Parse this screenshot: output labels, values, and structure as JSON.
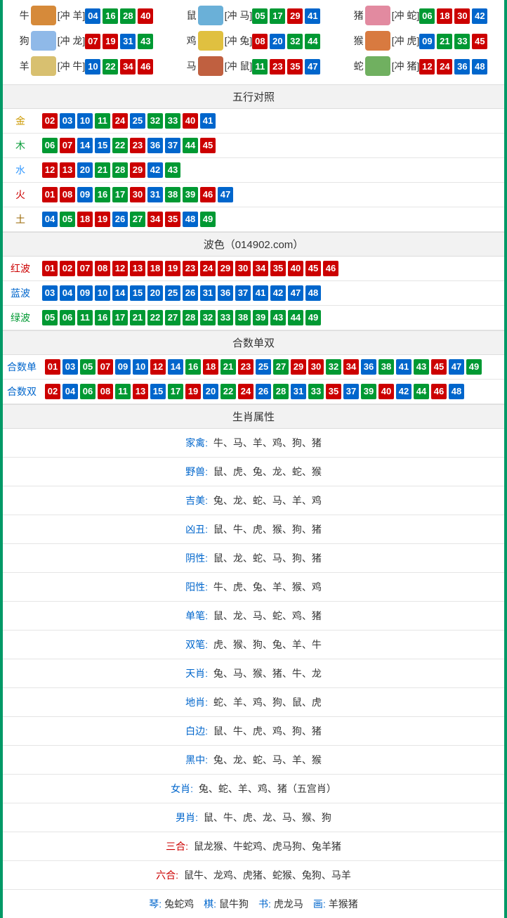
{
  "colors": {
    "red": "#cc0000",
    "green": "#009933",
    "blue": "#0066cc"
  },
  "zodiac_emoji_bg": {
    "牛": "#d68a3a",
    "鼠": "#6ab0d8",
    "猪": "#e28aa0",
    "狗": "#8fb9e8",
    "鸡": "#e0c040",
    "猴": "#d87a40",
    "羊": "#d8c070",
    "马": "#c06040",
    "蛇": "#70b060"
  },
  "zodiac": [
    {
      "name": "牛",
      "clash": "[冲 羊]",
      "balls": [
        {
          "n": "04",
          "c": "blue"
        },
        {
          "n": "16",
          "c": "green"
        },
        {
          "n": "28",
          "c": "green"
        },
        {
          "n": "40",
          "c": "red"
        }
      ]
    },
    {
      "name": "鼠",
      "clash": "[冲 马]",
      "balls": [
        {
          "n": "05",
          "c": "green"
        },
        {
          "n": "17",
          "c": "green"
        },
        {
          "n": "29",
          "c": "red"
        },
        {
          "n": "41",
          "c": "blue"
        }
      ]
    },
    {
      "name": "猪",
      "clash": "[冲 蛇]",
      "balls": [
        {
          "n": "06",
          "c": "green"
        },
        {
          "n": "18",
          "c": "red"
        },
        {
          "n": "30",
          "c": "red"
        },
        {
          "n": "42",
          "c": "blue"
        }
      ]
    },
    {
      "name": "狗",
      "clash": "[冲 龙]",
      "balls": [
        {
          "n": "07",
          "c": "red"
        },
        {
          "n": "19",
          "c": "red"
        },
        {
          "n": "31",
          "c": "blue"
        },
        {
          "n": "43",
          "c": "green"
        }
      ]
    },
    {
      "name": "鸡",
      "clash": "[冲 兔]",
      "balls": [
        {
          "n": "08",
          "c": "red"
        },
        {
          "n": "20",
          "c": "blue"
        },
        {
          "n": "32",
          "c": "green"
        },
        {
          "n": "44",
          "c": "green"
        }
      ]
    },
    {
      "name": "猴",
      "clash": "[冲 虎]",
      "balls": [
        {
          "n": "09",
          "c": "blue"
        },
        {
          "n": "21",
          "c": "green"
        },
        {
          "n": "33",
          "c": "green"
        },
        {
          "n": "45",
          "c": "red"
        }
      ]
    },
    {
      "name": "羊",
      "clash": "[冲 牛]",
      "balls": [
        {
          "n": "10",
          "c": "blue"
        },
        {
          "n": "22",
          "c": "green"
        },
        {
          "n": "34",
          "c": "red"
        },
        {
          "n": "46",
          "c": "red"
        }
      ]
    },
    {
      "name": "马",
      "clash": "[冲 鼠]",
      "balls": [
        {
          "n": "11",
          "c": "green"
        },
        {
          "n": "23",
          "c": "red"
        },
        {
          "n": "35",
          "c": "red"
        },
        {
          "n": "47",
          "c": "blue"
        }
      ]
    },
    {
      "name": "蛇",
      "clash": "[冲 猪]",
      "balls": [
        {
          "n": "12",
          "c": "red"
        },
        {
          "n": "24",
          "c": "red"
        },
        {
          "n": "36",
          "c": "blue"
        },
        {
          "n": "48",
          "c": "blue"
        }
      ]
    }
  ],
  "wuxing_header": "五行对照",
  "wuxing": [
    {
      "label": "金",
      "label_class": "gold",
      "balls": [
        {
          "n": "02",
          "c": "red"
        },
        {
          "n": "03",
          "c": "blue"
        },
        {
          "n": "10",
          "c": "blue"
        },
        {
          "n": "11",
          "c": "green"
        },
        {
          "n": "24",
          "c": "red"
        },
        {
          "n": "25",
          "c": "blue"
        },
        {
          "n": "32",
          "c": "green"
        },
        {
          "n": "33",
          "c": "green"
        },
        {
          "n": "40",
          "c": "red"
        },
        {
          "n": "41",
          "c": "blue"
        }
      ]
    },
    {
      "label": "木",
      "label_class": "wood",
      "balls": [
        {
          "n": "06",
          "c": "green"
        },
        {
          "n": "07",
          "c": "red"
        },
        {
          "n": "14",
          "c": "blue"
        },
        {
          "n": "15",
          "c": "blue"
        },
        {
          "n": "22",
          "c": "green"
        },
        {
          "n": "23",
          "c": "red"
        },
        {
          "n": "36",
          "c": "blue"
        },
        {
          "n": "37",
          "c": "blue"
        },
        {
          "n": "44",
          "c": "green"
        },
        {
          "n": "45",
          "c": "red"
        }
      ]
    },
    {
      "label": "水",
      "label_class": "water",
      "balls": [
        {
          "n": "12",
          "c": "red"
        },
        {
          "n": "13",
          "c": "red"
        },
        {
          "n": "20",
          "c": "blue"
        },
        {
          "n": "21",
          "c": "green"
        },
        {
          "n": "28",
          "c": "green"
        },
        {
          "n": "29",
          "c": "red"
        },
        {
          "n": "42",
          "c": "blue"
        },
        {
          "n": "43",
          "c": "green"
        }
      ]
    },
    {
      "label": "火",
      "label_class": "fire",
      "balls": [
        {
          "n": "01",
          "c": "red"
        },
        {
          "n": "08",
          "c": "red"
        },
        {
          "n": "09",
          "c": "blue"
        },
        {
          "n": "16",
          "c": "green"
        },
        {
          "n": "17",
          "c": "green"
        },
        {
          "n": "30",
          "c": "red"
        },
        {
          "n": "31",
          "c": "blue"
        },
        {
          "n": "38",
          "c": "green"
        },
        {
          "n": "39",
          "c": "green"
        },
        {
          "n": "46",
          "c": "red"
        },
        {
          "n": "47",
          "c": "blue"
        }
      ]
    },
    {
      "label": "土",
      "label_class": "earth",
      "balls": [
        {
          "n": "04",
          "c": "blue"
        },
        {
          "n": "05",
          "c": "green"
        },
        {
          "n": "18",
          "c": "red"
        },
        {
          "n": "19",
          "c": "red"
        },
        {
          "n": "26",
          "c": "blue"
        },
        {
          "n": "27",
          "c": "green"
        },
        {
          "n": "34",
          "c": "red"
        },
        {
          "n": "35",
          "c": "red"
        },
        {
          "n": "48",
          "c": "blue"
        },
        {
          "n": "49",
          "c": "green"
        }
      ]
    }
  ],
  "bose_header": "波色（014902.com）",
  "bose": [
    {
      "label": "红波",
      "label_class": "red-t",
      "balls": [
        {
          "n": "01",
          "c": "red"
        },
        {
          "n": "02",
          "c": "red"
        },
        {
          "n": "07",
          "c": "red"
        },
        {
          "n": "08",
          "c": "red"
        },
        {
          "n": "12",
          "c": "red"
        },
        {
          "n": "13",
          "c": "red"
        },
        {
          "n": "18",
          "c": "red"
        },
        {
          "n": "19",
          "c": "red"
        },
        {
          "n": "23",
          "c": "red"
        },
        {
          "n": "24",
          "c": "red"
        },
        {
          "n": "29",
          "c": "red"
        },
        {
          "n": "30",
          "c": "red"
        },
        {
          "n": "34",
          "c": "red"
        },
        {
          "n": "35",
          "c": "red"
        },
        {
          "n": "40",
          "c": "red"
        },
        {
          "n": "45",
          "c": "red"
        },
        {
          "n": "46",
          "c": "red"
        }
      ]
    },
    {
      "label": "蓝波",
      "label_class": "blue-t",
      "balls": [
        {
          "n": "03",
          "c": "blue"
        },
        {
          "n": "04",
          "c": "blue"
        },
        {
          "n": "09",
          "c": "blue"
        },
        {
          "n": "10",
          "c": "blue"
        },
        {
          "n": "14",
          "c": "blue"
        },
        {
          "n": "15",
          "c": "blue"
        },
        {
          "n": "20",
          "c": "blue"
        },
        {
          "n": "25",
          "c": "blue"
        },
        {
          "n": "26",
          "c": "blue"
        },
        {
          "n": "31",
          "c": "blue"
        },
        {
          "n": "36",
          "c": "blue"
        },
        {
          "n": "37",
          "c": "blue"
        },
        {
          "n": "41",
          "c": "blue"
        },
        {
          "n": "42",
          "c": "blue"
        },
        {
          "n": "47",
          "c": "blue"
        },
        {
          "n": "48",
          "c": "blue"
        }
      ]
    },
    {
      "label": "绿波",
      "label_class": "green-t",
      "balls": [
        {
          "n": "05",
          "c": "green"
        },
        {
          "n": "06",
          "c": "green"
        },
        {
          "n": "11",
          "c": "green"
        },
        {
          "n": "16",
          "c": "green"
        },
        {
          "n": "17",
          "c": "green"
        },
        {
          "n": "21",
          "c": "green"
        },
        {
          "n": "22",
          "c": "green"
        },
        {
          "n": "27",
          "c": "green"
        },
        {
          "n": "28",
          "c": "green"
        },
        {
          "n": "32",
          "c": "green"
        },
        {
          "n": "33",
          "c": "green"
        },
        {
          "n": "38",
          "c": "green"
        },
        {
          "n": "39",
          "c": "green"
        },
        {
          "n": "43",
          "c": "green"
        },
        {
          "n": "44",
          "c": "green"
        },
        {
          "n": "49",
          "c": "green"
        }
      ]
    }
  ],
  "heshu_header": "合数单双",
  "heshu": [
    {
      "label": "合数单",
      "label_class": "blue-t",
      "balls": [
        {
          "n": "01",
          "c": "red"
        },
        {
          "n": "03",
          "c": "blue"
        },
        {
          "n": "05",
          "c": "green"
        },
        {
          "n": "07",
          "c": "red"
        },
        {
          "n": "09",
          "c": "blue"
        },
        {
          "n": "10",
          "c": "blue"
        },
        {
          "n": "12",
          "c": "red"
        },
        {
          "n": "14",
          "c": "blue"
        },
        {
          "n": "16",
          "c": "green"
        },
        {
          "n": "18",
          "c": "red"
        },
        {
          "n": "21",
          "c": "green"
        },
        {
          "n": "23",
          "c": "red"
        },
        {
          "n": "25",
          "c": "blue"
        },
        {
          "n": "27",
          "c": "green"
        },
        {
          "n": "29",
          "c": "red"
        },
        {
          "n": "30",
          "c": "red"
        },
        {
          "n": "32",
          "c": "green"
        },
        {
          "n": "34",
          "c": "red"
        },
        {
          "n": "36",
          "c": "blue"
        },
        {
          "n": "38",
          "c": "green"
        },
        {
          "n": "41",
          "c": "blue"
        },
        {
          "n": "43",
          "c": "green"
        },
        {
          "n": "45",
          "c": "red"
        },
        {
          "n": "47",
          "c": "blue"
        },
        {
          "n": "49",
          "c": "green"
        }
      ]
    },
    {
      "label": "合数双",
      "label_class": "blue-t",
      "balls": [
        {
          "n": "02",
          "c": "red"
        },
        {
          "n": "04",
          "c": "blue"
        },
        {
          "n": "06",
          "c": "green"
        },
        {
          "n": "08",
          "c": "red"
        },
        {
          "n": "11",
          "c": "green"
        },
        {
          "n": "13",
          "c": "red"
        },
        {
          "n": "15",
          "c": "blue"
        },
        {
          "n": "17",
          "c": "green"
        },
        {
          "n": "19",
          "c": "red"
        },
        {
          "n": "20",
          "c": "blue"
        },
        {
          "n": "22",
          "c": "green"
        },
        {
          "n": "24",
          "c": "red"
        },
        {
          "n": "26",
          "c": "blue"
        },
        {
          "n": "28",
          "c": "green"
        },
        {
          "n": "31",
          "c": "blue"
        },
        {
          "n": "33",
          "c": "green"
        },
        {
          "n": "35",
          "c": "red"
        },
        {
          "n": "37",
          "c": "blue"
        },
        {
          "n": "39",
          "c": "green"
        },
        {
          "n": "40",
          "c": "red"
        },
        {
          "n": "42",
          "c": "blue"
        },
        {
          "n": "44",
          "c": "green"
        },
        {
          "n": "46",
          "c": "red"
        },
        {
          "n": "48",
          "c": "blue"
        }
      ]
    }
  ],
  "shengxiao_header": "生肖属性",
  "attrs": [
    {
      "key": "家禽:",
      "key_class": "blue-t",
      "val": "牛、马、羊、鸡、狗、猪"
    },
    {
      "key": "野兽:",
      "key_class": "blue-t",
      "val": "鼠、虎、兔、龙、蛇、猴"
    },
    {
      "key": "吉美:",
      "key_class": "blue-t",
      "val": "兔、龙、蛇、马、羊、鸡"
    },
    {
      "key": "凶丑:",
      "key_class": "blue-t",
      "val": "鼠、牛、虎、猴、狗、猪"
    },
    {
      "key": "阴性:",
      "key_class": "blue-t",
      "val": "鼠、龙、蛇、马、狗、猪"
    },
    {
      "key": "阳性:",
      "key_class": "blue-t",
      "val": "牛、虎、兔、羊、猴、鸡"
    },
    {
      "key": "单笔:",
      "key_class": "blue-t",
      "val": "鼠、龙、马、蛇、鸡、猪"
    },
    {
      "key": "双笔:",
      "key_class": "blue-t",
      "val": "虎、猴、狗、兔、羊、牛"
    },
    {
      "key": "天肖:",
      "key_class": "blue-t",
      "val": "兔、马、猴、猪、牛、龙"
    },
    {
      "key": "地肖:",
      "key_class": "blue-t",
      "val": "蛇、羊、鸡、狗、鼠、虎"
    },
    {
      "key": "白边:",
      "key_class": "blue-t",
      "val": "鼠、牛、虎、鸡、狗、猪"
    },
    {
      "key": "黑中:",
      "key_class": "blue-t",
      "val": "兔、龙、蛇、马、羊、猴"
    },
    {
      "key": "女肖:",
      "key_class": "blue-t",
      "val": "兔、蛇、羊、鸡、猪（五宫肖）"
    },
    {
      "key": "男肖:",
      "key_class": "blue-t",
      "val": "鼠、牛、虎、龙、马、猴、狗"
    },
    {
      "key": "三合:",
      "key_class": "red-t",
      "val": "鼠龙猴、牛蛇鸡、虎马狗、兔羊猪"
    },
    {
      "key": "六合:",
      "key_class": "red-t",
      "val": "鼠牛、龙鸡、虎猪、蛇猴、兔狗、马羊"
    }
  ],
  "bottom": [
    {
      "key": "琴:",
      "key_class": "blue-t",
      "val": "兔蛇鸡"
    },
    {
      "key": "棋:",
      "key_class": "blue-t",
      "val": "鼠牛狗"
    },
    {
      "key": "书:",
      "key_class": "blue-t",
      "val": "虎龙马"
    },
    {
      "key": "画:",
      "key_class": "blue-t",
      "val": "羊猴猪"
    }
  ]
}
